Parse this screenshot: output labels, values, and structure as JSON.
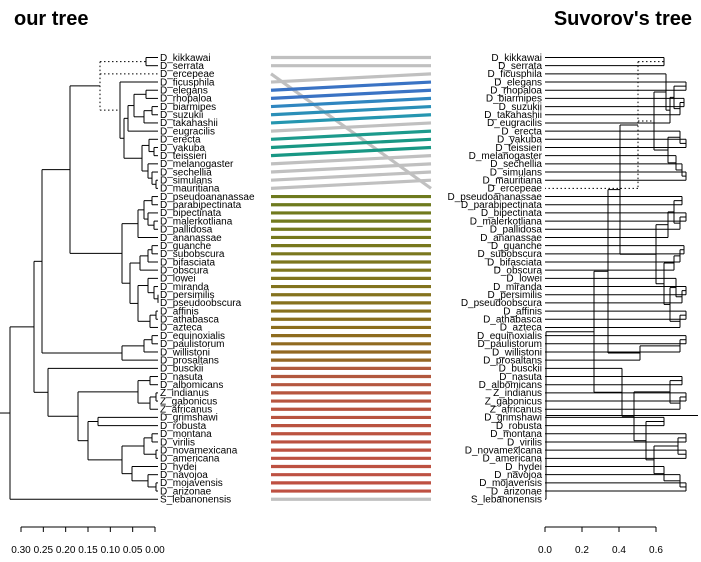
{
  "titles": {
    "left": "our tree",
    "right": "Suvorov's tree"
  },
  "left_tree": {
    "tips": [
      "D_kikkawai",
      "D_serrata",
      "D_ercepeae",
      "D_ficusphila",
      "D_elegans",
      "D_rhopaloa",
      "D_biarmipes",
      "D_suzukii",
      "D_takahashii",
      "D_eugracilis",
      "D_erecta",
      "D_yakuba",
      "D_teissieri",
      "D_melanogaster",
      "D_sechellia",
      "D_simulans",
      "D_mauritiana",
      "D_pseudoananassae",
      "D_parabipectinata",
      "D_bipectinata",
      "D_malerkotliana",
      "D_pallidosa",
      "D_ananassae",
      "D_guanche",
      "D_subobscura",
      "D_bifasciata",
      "D_obscura",
      "D_lowei",
      "D_miranda",
      "D_persimilis",
      "D_pseudoobscura",
      "D_affinis",
      "D_athabasca",
      "D_azteca",
      "D_equinoxialis",
      "D_paulistorum",
      "D_willistoni",
      "D_prosaltans",
      "D_busckii",
      "D_nasuta",
      "D_albomicans",
      "Z_indianus",
      "Z_gabonicus",
      "Z_africanus",
      "D_grimshawi",
      "D_robusta",
      "D_montana",
      "D_virilis",
      "D_novamexicana",
      "D_americana",
      "D_hydei",
      "D_navojoa",
      "D_mojavensis",
      "D_arizonae",
      "S_lebanonensis"
    ],
    "scale": {
      "ticks": [
        "0.30",
        "0.25",
        "0.20",
        "0.15",
        "0.10",
        "0.05",
        "0.00"
      ],
      "max": 0.3
    }
  },
  "right_tree": {
    "tips": [
      "D_kikkawai",
      "D_serrata",
      "D_ficusphila",
      "D_elegans",
      "D_rhopaloa",
      "D_biarmipes",
      "D_suzukii",
      "D_takahashii",
      "D_eugracilis",
      "D_erecta",
      "D_yakuba",
      "D_teissieri",
      "D_melanogaster",
      "D_sechellia",
      "D_simulans",
      "D_mauritiana",
      "D_ercepeae",
      "D_pseudoananassae",
      "D_parabipectinata",
      "D_bipectinata",
      "D_malerkotliana",
      "D_pallidosa",
      "D_ananassae",
      "D_guanche",
      "D_subobscura",
      "D_bifasciata",
      "D_obscura",
      "D_lowei",
      "D_miranda",
      "D_persimilis",
      "D_pseudoobscura",
      "D_affinis",
      "D_athabasca",
      "D_azteca",
      "D_equinoxialis",
      "D_paulistorum",
      "D_willistoni",
      "D_prosaltans",
      "D_busckii",
      "D_nasuta",
      "D_albomicans",
      "Z_indianus",
      "Z_gabonicus",
      "Z_africanus",
      "D_grimshawi",
      "D_robusta",
      "D_montana",
      "D_virilis",
      "D_novamexicana",
      "D_americana",
      "D_hydei",
      "D_navojoa",
      "D_mojavensis",
      "D_arizonae",
      "S_lebanonensis"
    ],
    "scale": {
      "ticks": [
        "0.0",
        "0.2",
        "0.4",
        "0.6"
      ],
      "max": 0.6
    }
  },
  "links": [
    {
      "l": 0,
      "r": 0,
      "color": "#c0c0c0"
    },
    {
      "l": 1,
      "r": 1,
      "color": "#c0c0c0"
    },
    {
      "l": 2,
      "r": 16,
      "color": "#c0c0c0"
    },
    {
      "l": 3,
      "r": 2,
      "color": "#c0c0c0"
    },
    {
      "l": 4,
      "r": 3,
      "color": "#3a73c4"
    },
    {
      "l": 5,
      "r": 4,
      "color": "#3a73c4"
    },
    {
      "l": 6,
      "r": 5,
      "color": "#2f86c0"
    },
    {
      "l": 7,
      "r": 6,
      "color": "#2a8fb8"
    },
    {
      "l": 8,
      "r": 7,
      "color": "#2596b0"
    },
    {
      "l": 9,
      "r": 8,
      "color": "#c0c0c0"
    },
    {
      "l": 10,
      "r": 9,
      "color": "#1c9a8c"
    },
    {
      "l": 11,
      "r": 10,
      "color": "#189784"
    },
    {
      "l": 12,
      "r": 11,
      "color": "#189784"
    },
    {
      "l": 13,
      "r": 12,
      "color": "#c0c0c0"
    },
    {
      "l": 14,
      "r": 13,
      "color": "#c0c0c0"
    },
    {
      "l": 15,
      "r": 14,
      "color": "#c0c0c0"
    },
    {
      "l": 16,
      "r": 15,
      "color": "#c0c0c0"
    },
    {
      "l": 17,
      "r": 17,
      "color": "#6e7a1e"
    },
    {
      "l": 18,
      "r": 18,
      "color": "#6e7a1e"
    },
    {
      "l": 19,
      "r": 19,
      "color": "#707a1e"
    },
    {
      "l": 20,
      "r": 20,
      "color": "#727a1e"
    },
    {
      "l": 21,
      "r": 21,
      "color": "#747a1e"
    },
    {
      "l": 22,
      "r": 22,
      "color": "#76791e"
    },
    {
      "l": 23,
      "r": 23,
      "color": "#78781e"
    },
    {
      "l": 24,
      "r": 24,
      "color": "#7a771e"
    },
    {
      "l": 25,
      "r": 25,
      "color": "#7c761e"
    },
    {
      "l": 26,
      "r": 26,
      "color": "#7e751e"
    },
    {
      "l": 27,
      "r": 27,
      "color": "#80741e"
    },
    {
      "l": 28,
      "r": 28,
      "color": "#82731e"
    },
    {
      "l": 29,
      "r": 29,
      "color": "#84721e"
    },
    {
      "l": 30,
      "r": 30,
      "color": "#86711e"
    },
    {
      "l": 31,
      "r": 31,
      "color": "#88701e"
    },
    {
      "l": 32,
      "r": 32,
      "color": "#8a6f1e"
    },
    {
      "l": 33,
      "r": 33,
      "color": "#8c6e1e"
    },
    {
      "l": 34,
      "r": 34,
      "color": "#8e6c1f"
    },
    {
      "l": 35,
      "r": 35,
      "color": "#906a20"
    },
    {
      "l": 36,
      "r": 36,
      "color": "#926822"
    },
    {
      "l": 37,
      "r": 37,
      "color": "#946624"
    },
    {
      "l": 38,
      "r": 38,
      "color": "#b05a3e"
    },
    {
      "l": 39,
      "r": 39,
      "color": "#b2583e"
    },
    {
      "l": 40,
      "r": 40,
      "color": "#b4573f"
    },
    {
      "l": 41,
      "r": 41,
      "color": "#b6563f"
    },
    {
      "l": 42,
      "r": 42,
      "color": "#b7553f"
    },
    {
      "l": 43,
      "r": 43,
      "color": "#b85440"
    },
    {
      "l": 44,
      "r": 44,
      "color": "#b95440"
    },
    {
      "l": 45,
      "r": 45,
      "color": "#ba5340"
    },
    {
      "l": 46,
      "r": 46,
      "color": "#bb5340"
    },
    {
      "l": 47,
      "r": 47,
      "color": "#bb5241"
    },
    {
      "l": 48,
      "r": 48,
      "color": "#bc5241"
    },
    {
      "l": 49,
      "r": 49,
      "color": "#bc5141"
    },
    {
      "l": 50,
      "r": 50,
      "color": "#bd5141"
    },
    {
      "l": 51,
      "r": 51,
      "color": "#bd5142"
    },
    {
      "l": 52,
      "r": 52,
      "color": "#be5042"
    },
    {
      "l": 53,
      "r": 53,
      "color": "#be5042"
    },
    {
      "l": 54,
      "r": 54,
      "color": "#c0c0c0"
    }
  ]
}
